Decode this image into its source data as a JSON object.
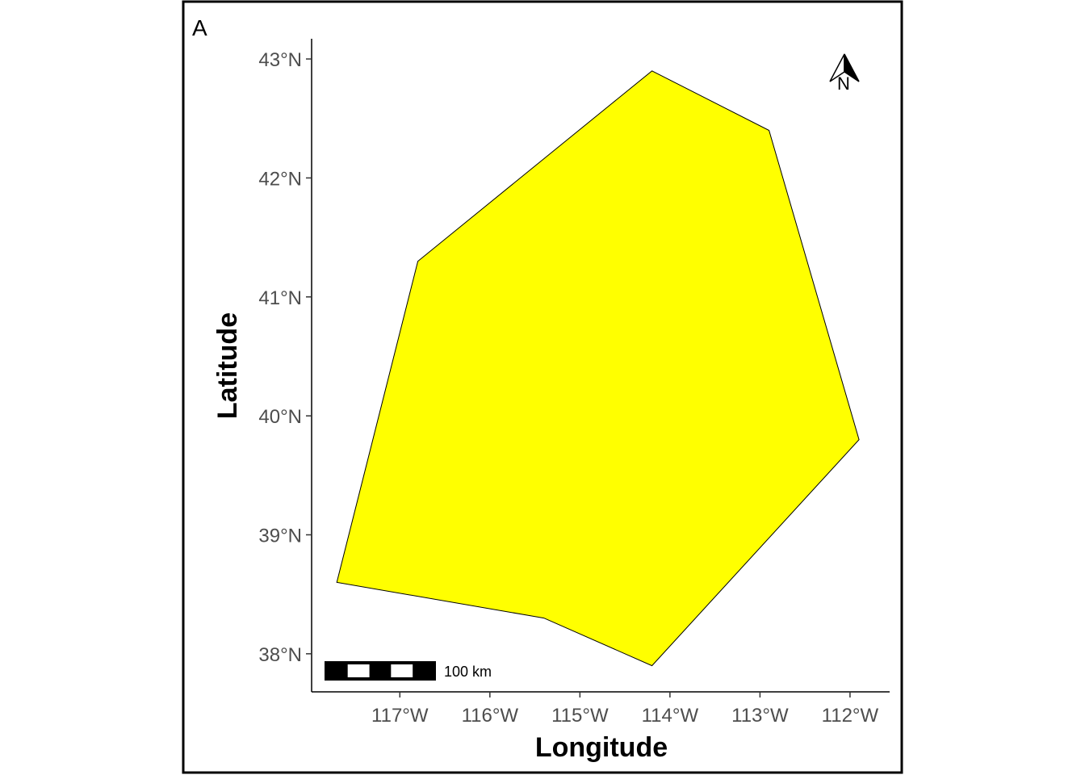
{
  "panel_label": "A",
  "axes": {
    "x_title": "Longitude",
    "y_title": "Latitude",
    "x_ticks": [
      {
        "value": -117,
        "label": "117°W"
      },
      {
        "value": -116,
        "label": "116°W"
      },
      {
        "value": -115,
        "label": "115°W"
      },
      {
        "value": -114,
        "label": "114°W"
      },
      {
        "value": -113,
        "label": "113°W"
      },
      {
        "value": -112,
        "label": "112°W"
      }
    ],
    "y_ticks": [
      {
        "value": 38,
        "label": "38°N"
      },
      {
        "value": 39,
        "label": "39°N"
      },
      {
        "value": 40,
        "label": "40°N"
      },
      {
        "value": 41,
        "label": "41°N"
      },
      {
        "value": 42,
        "label": "42°N"
      },
      {
        "value": 43,
        "label": "43°N"
      }
    ],
    "x_range": [
      -117.98,
      -111.56
    ],
    "y_range": [
      37.68,
      43.17
    ]
  },
  "region": {
    "fill_color": "#ffff00",
    "stroke_color": "#000000",
    "vertices": [
      {
        "lon": -114.2,
        "lat": 42.9
      },
      {
        "lon": -112.9,
        "lat": 42.4
      },
      {
        "lon": -111.9,
        "lat": 39.8
      },
      {
        "lon": -114.2,
        "lat": 37.9
      },
      {
        "lon": -115.4,
        "lat": 38.3
      },
      {
        "lon": -117.7,
        "lat": 38.6
      },
      {
        "lon": -116.8,
        "lat": 41.3
      }
    ]
  },
  "scale_bar": {
    "label": "100 km",
    "segments": 5,
    "colors": [
      "#000000",
      "#ffffff"
    ]
  },
  "north_arrow": {
    "label": "N"
  }
}
